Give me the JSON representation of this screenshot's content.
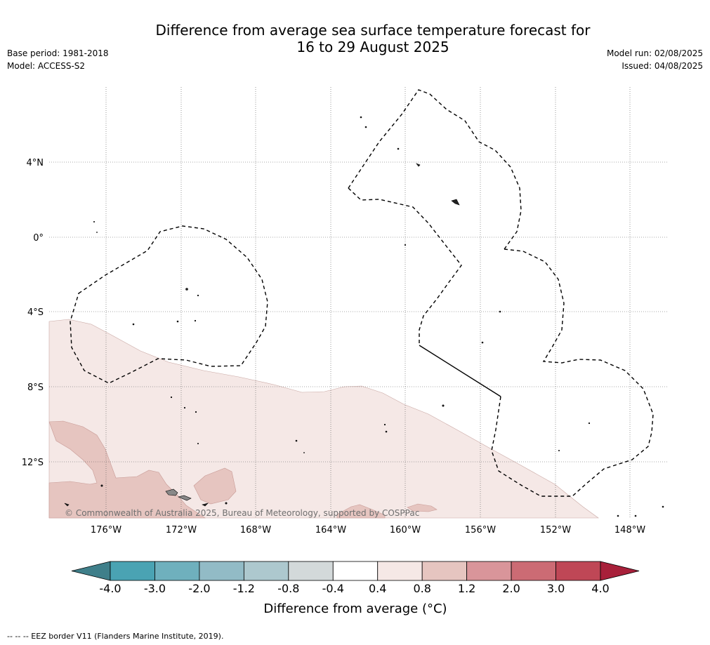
{
  "title": "Difference from average sea surface temperature forecast for\n16 to 29 August 2025",
  "meta_left": [
    "Base period: 1981-2018",
    "Model: ACCESS-S2"
  ],
  "meta_right": [
    "Model run: 02/08/2025",
    "Issued: 04/08/2025"
  ],
  "copyright": "© Commonwealth of Australia 2025, Bureau of Meteorology, supported by COSPPac",
  "lat_labels": [
    "4°N",
    "0°",
    "4°S",
    "8°S",
    "12°S"
  ],
  "lon_labels": [
    "176°W",
    "172°W",
    "168°W",
    "164°W",
    "160°W",
    "156°W",
    "152°W",
    "148°W"
  ],
  "colorbar": {
    "title": "Difference from average (°C)",
    "ticks": [
      "-4.0",
      "-3.0",
      "-2.0",
      "-1.2",
      "-0.8",
      "-0.4",
      "0.4",
      "0.8",
      "1.2",
      "2.0",
      "3.0",
      "4.0"
    ],
    "colors": [
      "#3f7f8a",
      "#4aa3b3",
      "#6fb0bd",
      "#92bbc6",
      "#adc8ce",
      "#d3d9da",
      "#ffffff",
      "#f5e8e6",
      "#e6c5c0",
      "#d9959a",
      "#cc6b74",
      "#bf4756",
      "#a8203a"
    ]
  },
  "footnote": "--  --  -- EEZ border V11 (Flanders Marine Institute, 2019).",
  "legend": {
    "eez_border": "dashed black line"
  }
}
